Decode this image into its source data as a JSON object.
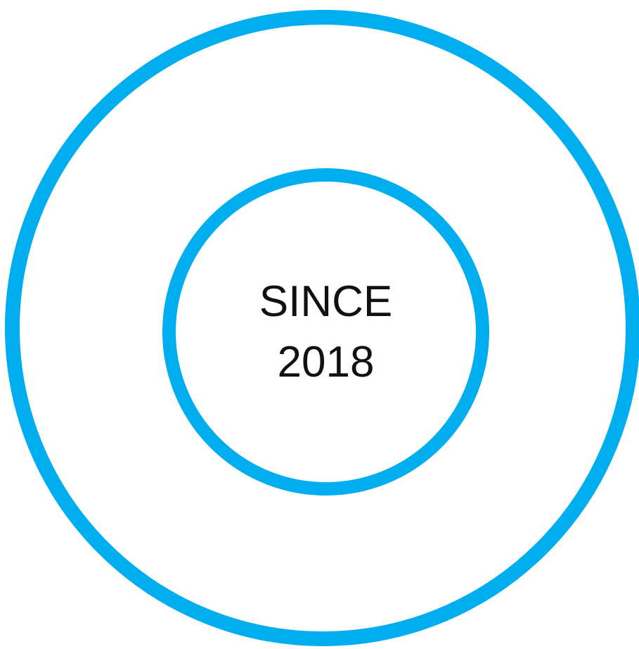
{
  "badge": {
    "line1": "SINCE",
    "line2": "2018"
  },
  "colors": {
    "ring": "#00ADEF",
    "text": "#111111",
    "background": "#FFFFFF"
  }
}
